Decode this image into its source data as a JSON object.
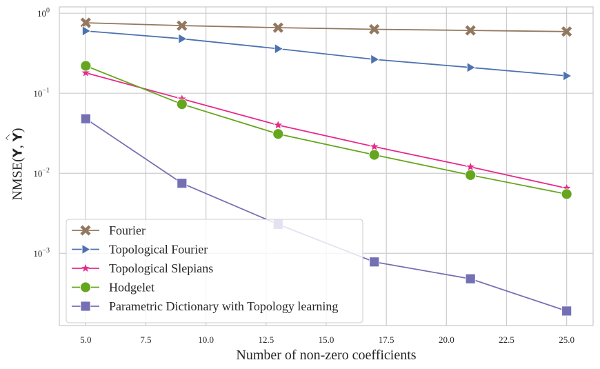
{
  "chart_data": {
    "type": "line",
    "title": "",
    "xlabel": "Number of non-zero coefficients",
    "ylabel_prefix": "NMSE",
    "ylabel_math": "(Y, Ŷ)",
    "ylabel_text": "NMSE(Y, Ŷ)",
    "yscale": "log",
    "xlim": [
      3.9,
      26.1
    ],
    "ylim": [
      0.000125,
      1.2
    ],
    "xticks": [
      5.0,
      7.5,
      10.0,
      12.5,
      15.0,
      17.5,
      20.0,
      22.5,
      25.0
    ],
    "xtick_labels": [
      "5.0",
      "7.5",
      "10.0",
      "12.5",
      "15.0",
      "17.5",
      "20.0",
      "22.5",
      "25.0"
    ],
    "yticks": [
      {
        "value": 1,
        "base": "10",
        "exp": "0"
      },
      {
        "value": 0.1,
        "base": "10",
        "exp": "−1"
      },
      {
        "value": 0.01,
        "base": "10",
        "exp": "−2"
      },
      {
        "value": 0.001,
        "base": "10",
        "exp": "−3"
      }
    ],
    "grid": true,
    "legend_position": "lower-left",
    "x": [
      5,
      9,
      13,
      17,
      21,
      25
    ],
    "series": [
      {
        "name": "Fourier",
        "color": "#937860",
        "marker": "x",
        "values": [
          0.76,
          0.7,
          0.66,
          0.63,
          0.61,
          0.59
        ]
      },
      {
        "name": "Topological Fourier",
        "color": "#4c72b0",
        "marker": "triangle-right",
        "values": [
          0.6,
          0.48,
          0.36,
          0.265,
          0.21,
          0.165
        ]
      },
      {
        "name": "Topological Slepians",
        "color": "#e7298a",
        "marker": "star",
        "values": [
          0.18,
          0.085,
          0.04,
          0.0215,
          0.012,
          0.0065
        ]
      },
      {
        "name": "Hodgelet",
        "color": "#66a61e",
        "marker": "circle",
        "values": [
          0.22,
          0.073,
          0.031,
          0.017,
          0.0095,
          0.0055
        ]
      },
      {
        "name": "Parametric Dictionary with Topology learning",
        "color": "#7570b3",
        "marker": "square",
        "values": [
          0.048,
          0.0075,
          0.0023,
          0.00078,
          0.00048,
          0.00019
        ]
      }
    ]
  }
}
